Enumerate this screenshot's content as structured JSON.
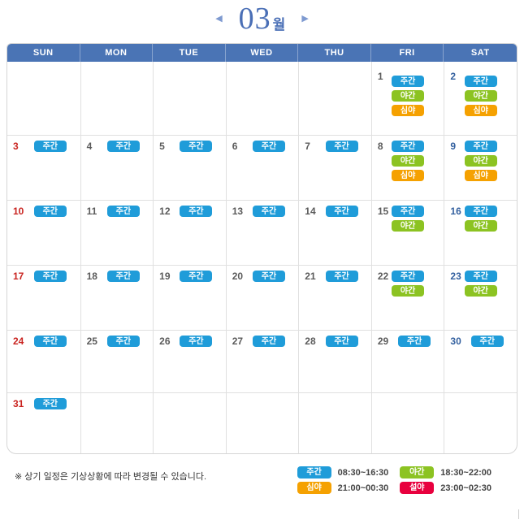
{
  "header": {
    "month_number": "03",
    "month_suffix": "월",
    "prev_arrow": "◀",
    "next_arrow": "▶"
  },
  "calendar": {
    "day_headers": [
      "SUN",
      "MON",
      "TUE",
      "WED",
      "THU",
      "FRI",
      "SAT"
    ],
    "badge_colors": {
      "주간": "#1f9cd9",
      "야간": "#8cc322",
      "심야": "#f5a101",
      "설야": "#e8003e"
    },
    "weeks": [
      [
        {
          "day": "",
          "day_type": "",
          "badges": []
        },
        {
          "day": "",
          "day_type": "",
          "badges": []
        },
        {
          "day": "",
          "day_type": "",
          "badges": []
        },
        {
          "day": "",
          "day_type": "",
          "badges": []
        },
        {
          "day": "",
          "day_type": "",
          "badges": []
        },
        {
          "day": "1",
          "day_type": "weekday",
          "badges": [
            "주간",
            "야간",
            "심야"
          ]
        },
        {
          "day": "2",
          "day_type": "saturday",
          "badges": [
            "주간",
            "야간",
            "심야"
          ]
        }
      ],
      [
        {
          "day": "3",
          "day_type": "sunday",
          "badges": [
            "주간"
          ]
        },
        {
          "day": "4",
          "day_type": "weekday",
          "badges": [
            "주간"
          ]
        },
        {
          "day": "5",
          "day_type": "weekday",
          "badges": [
            "주간"
          ]
        },
        {
          "day": "6",
          "day_type": "weekday",
          "badges": [
            "주간"
          ]
        },
        {
          "day": "7",
          "day_type": "weekday",
          "badges": [
            "주간"
          ]
        },
        {
          "day": "8",
          "day_type": "weekday",
          "badges": [
            "주간",
            "야간",
            "심야"
          ]
        },
        {
          "day": "9",
          "day_type": "saturday",
          "badges": [
            "주간",
            "야간",
            "심야"
          ]
        }
      ],
      [
        {
          "day": "10",
          "day_type": "sunday",
          "badges": [
            "주간"
          ]
        },
        {
          "day": "11",
          "day_type": "weekday",
          "badges": [
            "주간"
          ]
        },
        {
          "day": "12",
          "day_type": "weekday",
          "badges": [
            "주간"
          ]
        },
        {
          "day": "13",
          "day_type": "weekday",
          "badges": [
            "주간"
          ]
        },
        {
          "day": "14",
          "day_type": "weekday",
          "badges": [
            "주간"
          ]
        },
        {
          "day": "15",
          "day_type": "weekday",
          "badges": [
            "주간",
            "야간"
          ]
        },
        {
          "day": "16",
          "day_type": "saturday",
          "badges": [
            "주간",
            "야간"
          ]
        }
      ],
      [
        {
          "day": "17",
          "day_type": "sunday",
          "badges": [
            "주간"
          ]
        },
        {
          "day": "18",
          "day_type": "weekday",
          "badges": [
            "주간"
          ]
        },
        {
          "day": "19",
          "day_type": "weekday",
          "badges": [
            "주간"
          ]
        },
        {
          "day": "20",
          "day_type": "weekday",
          "badges": [
            "주간"
          ]
        },
        {
          "day": "21",
          "day_type": "weekday",
          "badges": [
            "주간"
          ]
        },
        {
          "day": "22",
          "day_type": "weekday",
          "badges": [
            "주간",
            "야간"
          ]
        },
        {
          "day": "23",
          "day_type": "saturday",
          "badges": [
            "주간",
            "야간"
          ]
        }
      ],
      [
        {
          "day": "24",
          "day_type": "sunday",
          "badges": [
            "주간"
          ]
        },
        {
          "day": "25",
          "day_type": "weekday",
          "badges": [
            "주간"
          ]
        },
        {
          "day": "26",
          "day_type": "weekday",
          "badges": [
            "주간"
          ]
        },
        {
          "day": "27",
          "day_type": "weekday",
          "badges": [
            "주간"
          ]
        },
        {
          "day": "28",
          "day_type": "weekday",
          "badges": [
            "주간"
          ]
        },
        {
          "day": "29",
          "day_type": "weekday",
          "badges": [
            "주간"
          ]
        },
        {
          "day": "30",
          "day_type": "saturday",
          "badges": [
            "주간"
          ]
        }
      ],
      [
        {
          "day": "31",
          "day_type": "sunday",
          "badges": [
            "주간"
          ]
        },
        {
          "day": "",
          "day_type": "",
          "badges": []
        },
        {
          "day": "",
          "day_type": "",
          "badges": []
        },
        {
          "day": "",
          "day_type": "",
          "badges": []
        },
        {
          "day": "",
          "day_type": "",
          "badges": []
        },
        {
          "day": "",
          "day_type": "",
          "badges": []
        },
        {
          "day": "",
          "day_type": "",
          "badges": []
        }
      ]
    ]
  },
  "footnote": "※ 상기 일정은 기상상황에 따라 변경될 수 있습니다.",
  "legend": {
    "items": [
      {
        "label": "주간",
        "time": "08:30~16:30"
      },
      {
        "label": "야간",
        "time": "18:30~22:00"
      },
      {
        "label": "심야",
        "time": "21:00~00:30"
      },
      {
        "label": "설야",
        "time": "23:00~02:30"
      }
    ]
  }
}
